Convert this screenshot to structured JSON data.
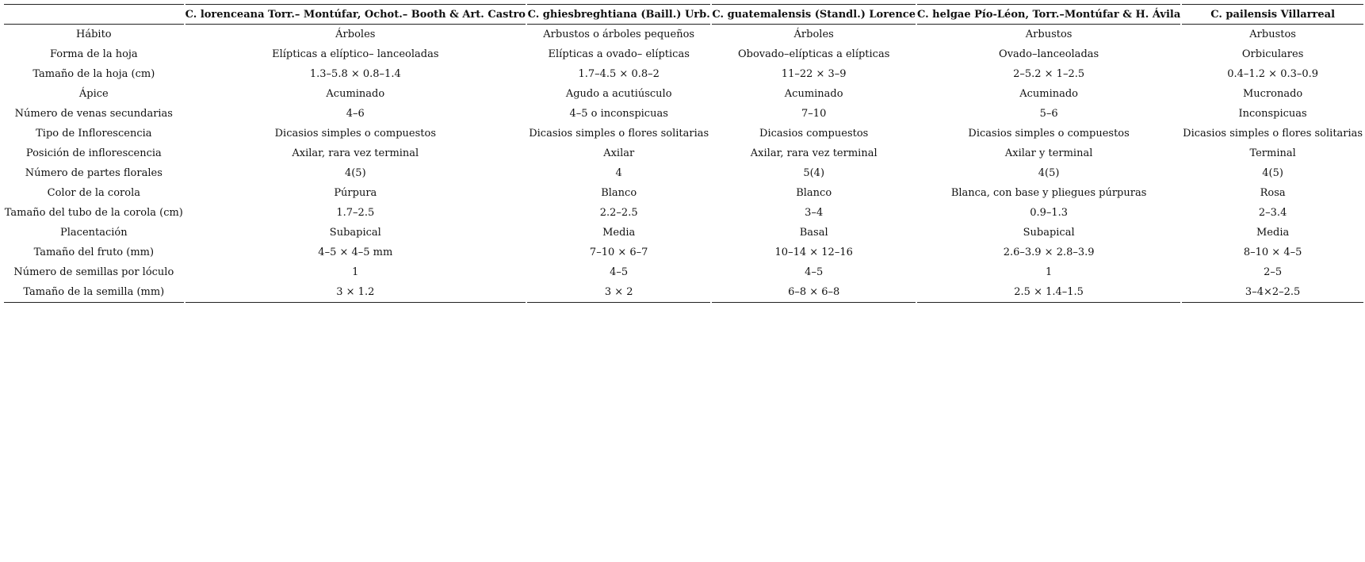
{
  "table": {
    "header": [
      "C. lorenceana Torr.– Montúfar, Ochot.– Booth & Art. Castro",
      "C. ghiesbreghtiana (Baill.) Urb.",
      "C. guatemalensis (Standl.) Lorence",
      "C. helgae Pío-Léon, Torr.–Montúfar & H. Ávila",
      "C. pailensis Villarreal"
    ],
    "rows": [
      [
        "Hábito",
        "Árboles",
        "Arbustos o árboles pequeños",
        "Árboles",
        "Arbustos",
        "Arbustos"
      ],
      [
        "Forma de la hoja",
        "Elípticas a elíptico– lanceoladas",
        "Elípticas a ovado– elípticas",
        "Obovado–elípticas a elípticas",
        "Ovado–lanceoladas",
        "Orbiculares"
      ],
      [
        "Tamaño de la hoja (cm)",
        "1.3–5.8 × 0.8–1.4",
        "1.7–4.5 × 0.8–2",
        "11–22 × 3–9",
        "2–5.2 × 1–2.5",
        "0.4–1.2 × 0.3–0.9"
      ],
      [
        "Ápice",
        "Acuminado",
        "Agudo a acutiúsculo",
        "Acuminado",
        "Acuminado",
        "Mucronado"
      ],
      [
        "Número de venas secundarias",
        "4–6",
        "4–5 o inconspicuas",
        "7–10",
        "5–6",
        "Inconspicuas"
      ],
      [
        "Tipo de Inflorescencia",
        "Dicasios simples o compuestos",
        "Dicasios simples o flores solitarias",
        "Dicasios compuestos",
        "Dicasios simples o compuestos",
        "Dicasios simples o flores solitarias"
      ],
      [
        "Posición de inflorescencia",
        "Axilar, rara vez terminal",
        "Axilar",
        "Axilar, rara vez terminal",
        "Axilar y terminal",
        "Terminal"
      ],
      [
        "Número de partes florales",
        "4(5)",
        "4",
        "5(4)",
        "4(5)",
        "4(5)"
      ],
      [
        "Color de la corola",
        "Púrpura",
        "Blanco",
        "Blanco",
        "Blanca, con base y pliegues púrpuras",
        "Rosa"
      ],
      [
        "Tamaño del tubo de la corola (cm)",
        "1.7–2.5",
        "2.2–2.5",
        "3–4",
        "0.9–1.3",
        "2–3.4"
      ],
      [
        "Placentación",
        "Subapical",
        "Media",
        "Basal",
        "Subapical",
        "Media"
      ],
      [
        "Tamaño del fruto (mm)",
        "4–5 × 4–5 mm",
        "7–10 × 6–7",
        "10–14 × 12–16",
        "2.6–3.9 × 2.8–3.9",
        "8–10 × 4–5"
      ],
      [
        "Número de semillas por lóculo",
        "1",
        "4–5",
        "4–5",
        "1",
        "2–5"
      ],
      [
        "Tamaño de la semilla (mm)",
        "3 × 1.2",
        "3 × 2",
        "6–8 × 6–8",
        "2.5 × 1.4–1.5",
        "3–4×2–2.5"
      ]
    ]
  }
}
